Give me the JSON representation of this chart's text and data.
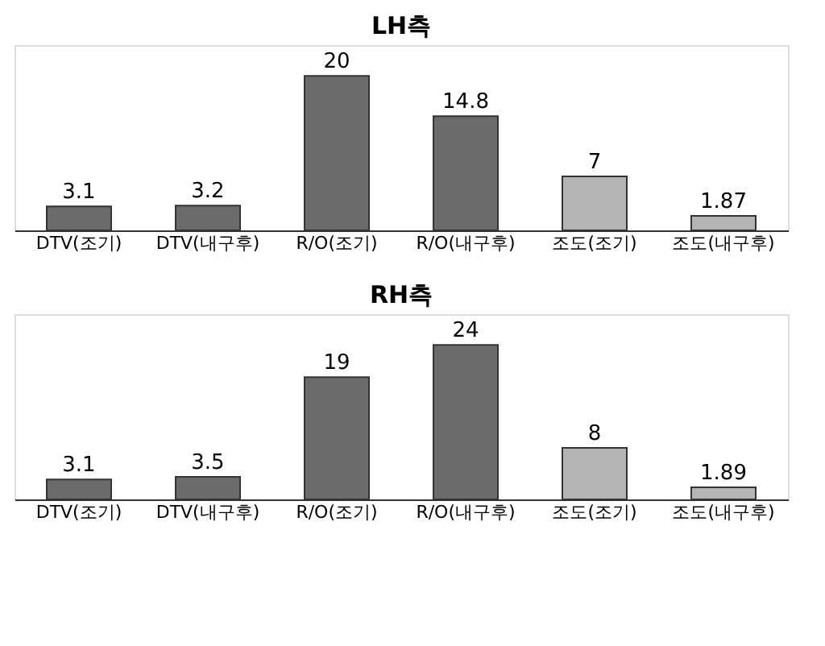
{
  "chart_data": [
    {
      "type": "bar",
      "title": "LH측",
      "categories": [
        "DTV(조기)",
        "DTV(내구후)",
        "R/O(조기)",
        "R/O(내구후)",
        "조도(조기)",
        "조도(내구후)"
      ],
      "values": [
        3.1,
        3.2,
        20,
        14.8,
        7,
        1.87
      ],
      "colors": [
        "#6b6b6b",
        "#6b6b6b",
        "#6b6b6b",
        "#6b6b6b",
        "#b4b4b4",
        "#b4b4b4"
      ],
      "data_labels": true
    },
    {
      "type": "bar",
      "title": "RH측",
      "categories": [
        "DTV(조기)",
        "DTV(내구후)",
        "R/O(조기)",
        "R/O(내구후)",
        "조도(조기)",
        "조도(내구후)"
      ],
      "values": [
        3.1,
        3.5,
        19,
        24,
        8,
        1.89
      ],
      "colors": [
        "#6b6b6b",
        "#6b6b6b",
        "#6b6b6b",
        "#6b6b6b",
        "#b4b4b4",
        "#b4b4b4"
      ],
      "data_labels": true
    }
  ]
}
